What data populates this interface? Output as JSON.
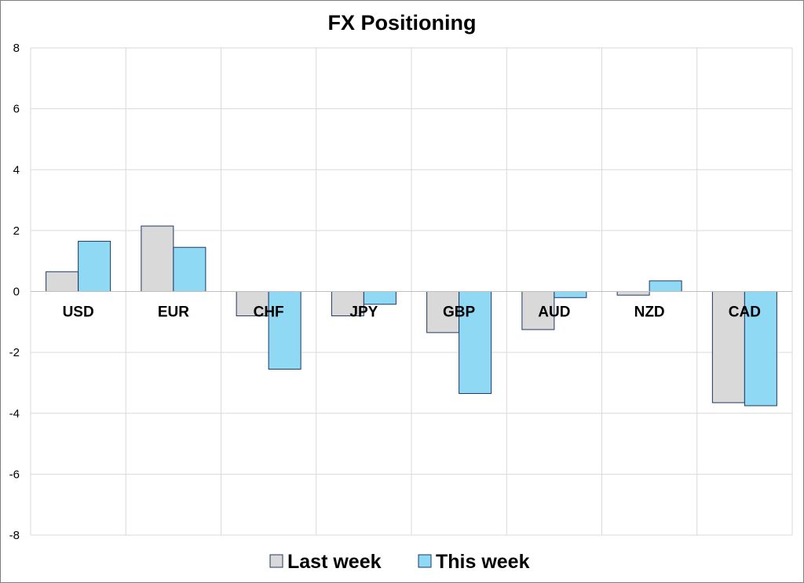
{
  "chart_data": {
    "type": "bar",
    "title": "FX Positioning",
    "xlabel": "",
    "ylabel": "",
    "categories": [
      "USD",
      "EUR",
      "CHF",
      "JPY",
      "GBP",
      "AUD",
      "NZD",
      "CAD"
    ],
    "series": [
      {
        "name": "Last week",
        "color": "#d9d9d9",
        "values": [
          0.65,
          2.15,
          -0.8,
          -0.8,
          -1.35,
          -1.25,
          -0.12,
          -3.65
        ]
      },
      {
        "name": "This week",
        "color": "#8fd9f5",
        "values": [
          1.65,
          1.45,
          -2.55,
          -0.42,
          -3.35,
          -0.2,
          0.35,
          -3.75
        ]
      }
    ],
    "ylim": [
      -8,
      8
    ],
    "yticks": [
      8,
      6,
      4,
      2,
      0,
      -2,
      -4,
      -6,
      -8
    ],
    "grid": true,
    "bar_edge_color": "#1f3864",
    "legend_position": "bottom"
  }
}
